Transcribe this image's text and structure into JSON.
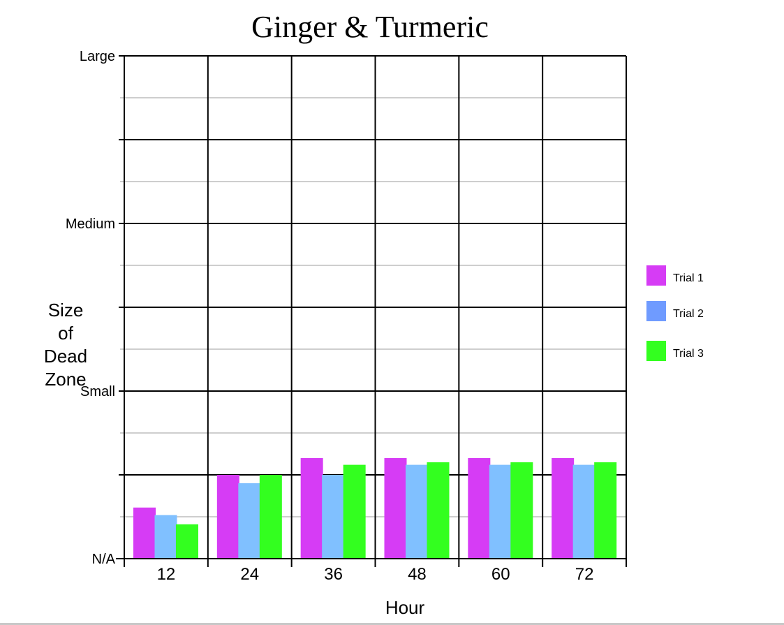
{
  "chart_data": {
    "type": "bar",
    "title": "Ginger & Turmeric",
    "xlabel": "Hour",
    "ylabel": [
      "Size",
      "of",
      "Dead",
      "Zone"
    ],
    "categories": [
      "12",
      "24",
      "36",
      "48",
      "60",
      "72"
    ],
    "y_tick_labels": [
      {
        "value": 0,
        "label": "N/A"
      },
      {
        "value": 1,
        "label": ""
      },
      {
        "value": 2,
        "label": "Small"
      },
      {
        "value": 3,
        "label": ""
      },
      {
        "value": 4,
        "label": "Medium"
      },
      {
        "value": 5,
        "label": ""
      },
      {
        "value": 6,
        "label": "Large"
      }
    ],
    "ylim": [
      0,
      6
    ],
    "grid": true,
    "legend_position": "right",
    "series": [
      {
        "name": "Trial 1",
        "color": "#d63cf5",
        "values": [
          0.61,
          1.0,
          1.2,
          1.2,
          1.2,
          1.2
        ]
      },
      {
        "name": "Trial 2",
        "color": "#80c0ff",
        "legend_color": "#6f9bff",
        "values": [
          0.52,
          0.9,
          1.0,
          1.12,
          1.12,
          1.12
        ]
      },
      {
        "name": "Trial 3",
        "color": "#33ff1f",
        "values": [
          0.41,
          1.0,
          1.12,
          1.15,
          1.15,
          1.15
        ]
      }
    ]
  }
}
